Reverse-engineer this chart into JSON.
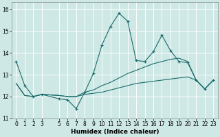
{
  "xlabel": "Humidex (Indice chaleur)",
  "bg_color": "#cde8e5",
  "line_color": "#1a6b6b",
  "grid_color": "#ffffff",
  "xlim": [
    -0.5,
    23.5
  ],
  "ylim": [
    11,
    16.3
  ],
  "yticks": [
    11,
    12,
    13,
    14,
    15,
    16
  ],
  "xticks": [
    0,
    1,
    2,
    3,
    5,
    6,
    7,
    8,
    9,
    10,
    11,
    12,
    13,
    14,
    15,
    16,
    17,
    18,
    19,
    20,
    21,
    22,
    23
  ],
  "line1_x": [
    0,
    1,
    2,
    3,
    5,
    6,
    7,
    8,
    9,
    10,
    11,
    12,
    13,
    14,
    15,
    16,
    17,
    18,
    19,
    20,
    21,
    22,
    23
  ],
  "line1_y": [
    13.6,
    12.5,
    12.0,
    12.1,
    11.9,
    11.85,
    11.45,
    12.2,
    13.05,
    14.35,
    15.2,
    15.8,
    15.45,
    13.65,
    13.6,
    14.05,
    14.8,
    14.1,
    13.6,
    13.55,
    12.75,
    12.35,
    12.75
  ],
  "line2_x": [
    0,
    1,
    2,
    3,
    5,
    6,
    7,
    8,
    9,
    10,
    11,
    12,
    13,
    14,
    15,
    16,
    17,
    18,
    19,
    20,
    21,
    22,
    23
  ],
  "line2_y": [
    12.6,
    12.05,
    12.0,
    12.1,
    12.05,
    12.0,
    12.0,
    12.2,
    12.3,
    12.5,
    12.65,
    12.85,
    13.05,
    13.2,
    13.35,
    13.5,
    13.6,
    13.7,
    13.75,
    13.6,
    12.75,
    12.35,
    12.75
  ],
  "line3_x": [
    0,
    1,
    2,
    3,
    5,
    6,
    7,
    8,
    9,
    10,
    11,
    12,
    13,
    14,
    15,
    16,
    17,
    18,
    19,
    20,
    21,
    22,
    23
  ],
  "line3_y": [
    12.6,
    12.05,
    12.0,
    12.1,
    12.05,
    12.0,
    12.0,
    12.1,
    12.15,
    12.2,
    12.3,
    12.4,
    12.5,
    12.6,
    12.65,
    12.7,
    12.75,
    12.8,
    12.85,
    12.9,
    12.75,
    12.35,
    12.75
  ]
}
